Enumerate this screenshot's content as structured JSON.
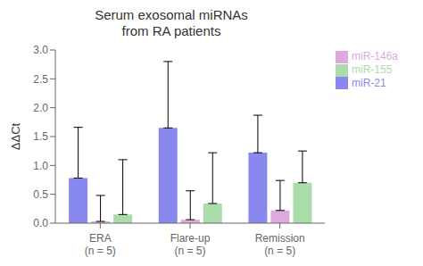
{
  "chart_data": {
    "type": "bar",
    "title": "Serum exosomal miRNAs\nfrom RA patients",
    "ylabel": "ΔΔCt",
    "categories": [
      "ERA\n(n = 5)",
      "Flare-up\n(n = 5)",
      "Remission\n(n = 5)"
    ],
    "series": [
      {
        "name": "miR-21",
        "color": "#8888ee",
        "values": [
          0.78,
          1.65,
          1.22
        ],
        "errors_upper": [
          0.88,
          1.15,
          0.65
        ]
      },
      {
        "name": "miR-146a",
        "color": "#ddaadd",
        "values": [
          0.03,
          0.06,
          0.22
        ],
        "errors_upper": [
          0.45,
          0.5,
          0.52
        ]
      },
      {
        "name": "miR-155",
        "color": "#aaddaa",
        "values": [
          0.15,
          0.34,
          0.7
        ],
        "errors_upper": [
          0.95,
          0.88,
          0.55
        ]
      }
    ],
    "ylim": [
      0,
      3.0
    ],
    "yticks": [
      {
        "value": 0.0,
        "label": "0.0"
      },
      0.5,
      {
        "value": 1.0,
        "label": "1.0"
      },
      1.5,
      {
        "value": 2.0,
        "label": "2.0"
      },
      2.5,
      {
        "value": 3.0,
        "label": "3.0"
      }
    ],
    "grid": false,
    "legend": "right"
  }
}
